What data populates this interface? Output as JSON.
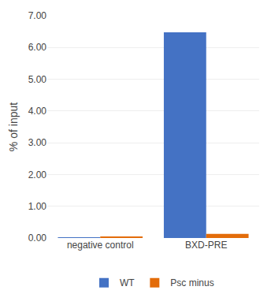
{
  "chart_data": {
    "type": "bar",
    "categories": [
      "negative control",
      "BXD-PRE"
    ],
    "series": [
      {
        "name": "WT",
        "color": "#4472C4",
        "values": [
          0.02,
          6.48
        ]
      },
      {
        "name": "Psc minus",
        "color": "#E36C0A",
        "values": [
          0.04,
          0.13
        ]
      }
    ],
    "ylabel": "% of input",
    "ylim": [
      0,
      7.0
    ],
    "yticks": [
      {
        "value": 0.0,
        "label": "0.00"
      },
      {
        "value": 1.0,
        "label": "1.00"
      },
      {
        "value": 2.0,
        "label": "2.00"
      },
      {
        "value": 3.0,
        "label": "3.00"
      },
      {
        "value": 4.0,
        "label": "4.00"
      },
      {
        "value": 5.0,
        "label": "5.00"
      },
      {
        "value": 6.0,
        "label": "6.00"
      },
      {
        "value": 7.0,
        "label": "7.00"
      }
    ],
    "grid": true,
    "legend": "bottom"
  }
}
